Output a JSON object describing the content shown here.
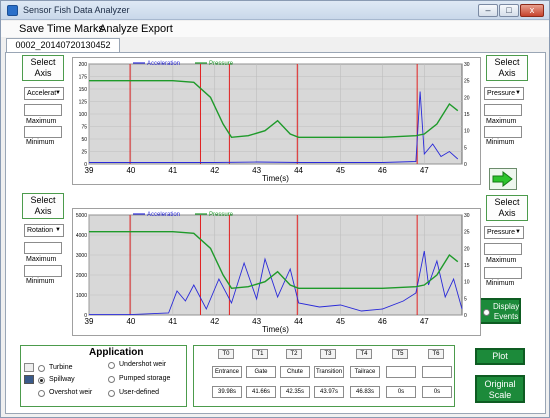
{
  "window": {
    "title": "Sensor Fish Data Analyzer",
    "controls": [
      "–",
      "□",
      "x"
    ]
  },
  "menu": [
    "Save Time Marks",
    "Analyze",
    "Export"
  ],
  "tab": "0002_20140720130452",
  "select_axis_label": "Select\nAxis",
  "top_chart": {
    "legend": [
      "Acceleration",
      "Pressure"
    ],
    "left_select": "Accelerat",
    "right_select": "Pressure",
    "maximum": "Maximum",
    "minimum": "Minimum",
    "xlabel": "Time(s)",
    "x_ticks": [
      "39",
      "40",
      "41",
      "42",
      "43",
      "44",
      "45",
      "46",
      "47"
    ],
    "y_left_ticks": [
      "200",
      "175",
      "150",
      "125",
      "100",
      "75",
      "50",
      "25",
      "0"
    ],
    "y_right_ticks": [
      "30",
      "25",
      "20",
      "15",
      "10",
      "5",
      "0"
    ]
  },
  "bottom_chart": {
    "legend": [
      "Acceleration",
      "Pressure"
    ],
    "left_select": "Rotation",
    "right_select": "Pressure",
    "maximum": "Maximum",
    "minimum": "Minimum",
    "xlabel": "Time(s)",
    "x_ticks": [
      "39",
      "40",
      "41",
      "42",
      "43",
      "44",
      "45",
      "46",
      "47"
    ],
    "y_left_ticks": [
      "5000",
      "4000",
      "3000",
      "2000",
      "1000",
      "0"
    ],
    "y_right_ticks": [
      "30",
      "25",
      "20",
      "15",
      "10",
      "5",
      "0"
    ]
  },
  "display_events": "Display\nEvents",
  "application": {
    "title": "Application",
    "options": [
      "Turbine",
      "Spillway",
      "Overshot weir",
      "Undershot weir",
      "Pumped storage",
      "User-defined"
    ],
    "selected": "Spillway"
  },
  "time_marks": {
    "headers": [
      "T0",
      "T1",
      "T2",
      "T3",
      "T4",
      "T5",
      "T6"
    ],
    "names": [
      "Entrance",
      "Gate",
      "Chute",
      "Transition",
      "Tailrace",
      "",
      ""
    ],
    "times": [
      "39.98s",
      "41.66s",
      "42.35s",
      "43.97s",
      "46.83s",
      "0s",
      "0s"
    ]
  },
  "plot_button": "Plot",
  "original_scale_button": "Original\nScale",
  "colors": {
    "acceleration": "#2a2ad8",
    "pressure": "#1e9a2a",
    "event_line": "#e02020",
    "plot_bg": "#d8d8d8",
    "button_green": "#1c8a3a"
  },
  "chart_data": [
    {
      "type": "line",
      "xlabel": "Time(s)",
      "xlim": [
        39,
        47.9
      ],
      "ylim_left": [
        0,
        200
      ],
      "ylim_right": [
        0,
        30
      ],
      "series": [
        {
          "name": "Acceleration",
          "axis": "left",
          "x": [
            39,
            40,
            41,
            42,
            43,
            44,
            45,
            46,
            46.8,
            46.9,
            47.0,
            47.2,
            47.4,
            47.6,
            47.8
          ],
          "values": [
            3,
            3,
            3,
            3,
            4,
            3,
            3,
            3,
            5,
            145,
            20,
            40,
            15,
            25,
            10
          ]
        },
        {
          "name": "Pressure",
          "axis": "right",
          "x": [
            39,
            40,
            41,
            41.5,
            41.9,
            42.2,
            42.4,
            42.8,
            43.2,
            43.5,
            43.8,
            44,
            45,
            46,
            46.8,
            47.0,
            47.3,
            47.6,
            47.8
          ],
          "values": [
            25,
            25,
            25,
            24.5,
            20,
            12,
            8,
            8.5,
            10,
            13,
            9,
            8,
            8,
            8,
            8.5,
            9,
            12,
            18,
            16
          ]
        }
      ],
      "event_lines": [
        39.98,
        41.66,
        42.35,
        43.97,
        46.83
      ]
    },
    {
      "type": "line",
      "xlabel": "Time(s)",
      "xlim": [
        39,
        47.9
      ],
      "ylim_left": [
        0,
        5000
      ],
      "ylim_right": [
        0,
        30
      ],
      "series": [
        {
          "name": "Acceleration",
          "axis": "left",
          "x": [
            39,
            40,
            40.9,
            41.1,
            41.3,
            41.5,
            41.8,
            42.1,
            42.4,
            42.7,
            43.0,
            43.2,
            43.5,
            43.8,
            44,
            44.5,
            45,
            45.5,
            46,
            46.5,
            46.8,
            47.0,
            47.1,
            47.3,
            47.5,
            47.7,
            47.9
          ],
          "values": [
            20,
            20,
            100,
            1200,
            700,
            1500,
            300,
            1800,
            600,
            2600,
            800,
            2800,
            900,
            2300,
            600,
            400,
            500,
            200,
            300,
            700,
            1100,
            3200,
            1500,
            2700,
            900,
            1800,
            300
          ]
        },
        {
          "name": "Pressure",
          "axis": "right",
          "x": [
            39,
            40,
            41,
            41.5,
            41.9,
            42.2,
            42.4,
            42.8,
            43.2,
            43.5,
            43.8,
            44,
            45,
            46,
            46.8,
            47.0,
            47.3,
            47.6,
            47.8
          ],
          "values": [
            25,
            25,
            25,
            24.5,
            20,
            12,
            8,
            8.5,
            10,
            13,
            9,
            8,
            8,
            8,
            8.5,
            9,
            12,
            18,
            16
          ]
        }
      ],
      "event_lines": [
        39.98,
        41.66,
        42.35,
        43.97,
        46.83
      ]
    }
  ]
}
